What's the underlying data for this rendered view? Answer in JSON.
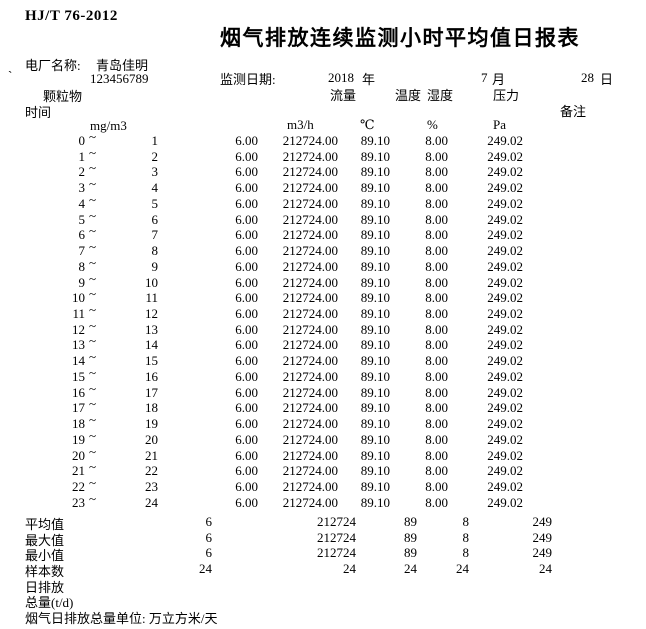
{
  "doc": {
    "standard": "HJ/T 76-2012",
    "title": "烟气排放连续监测小时平均值日报表",
    "plant_label": "电厂名称:",
    "plant_name": "青岛佳明",
    "plant_code_prefix": "`",
    "plant_code": "123456789",
    "date_label": "监测日期:",
    "date_year": "2018",
    "year_unit": "年",
    "date_month": "7",
    "month_unit": "月",
    "date_day": "28",
    "day_unit": "日"
  },
  "columns": {
    "time_label": "时间",
    "pm_label": "颗粒物",
    "pm_unit": "mg/m3",
    "flow_label": "流量",
    "flow_unit": "m3/h",
    "temp_label": "温度",
    "temp_unit": "℃",
    "humidity_label": "湿度",
    "humidity_unit": "%",
    "pressure_label": "压力",
    "pressure_unit": "Pa",
    "remark_label": "备注"
  },
  "table": {
    "tilde": "~",
    "rows": [
      {
        "from": "0",
        "to": "1",
        "pm": "6.00",
        "flow": "212724.00",
        "temp": "89.10",
        "humidity": "8.00",
        "pressure": "249.02"
      },
      {
        "from": "1",
        "to": "2",
        "pm": "6.00",
        "flow": "212724.00",
        "temp": "89.10",
        "humidity": "8.00",
        "pressure": "249.02"
      },
      {
        "from": "2",
        "to": "3",
        "pm": "6.00",
        "flow": "212724.00",
        "temp": "89.10",
        "humidity": "8.00",
        "pressure": "249.02"
      },
      {
        "from": "3",
        "to": "4",
        "pm": "6.00",
        "flow": "212724.00",
        "temp": "89.10",
        "humidity": "8.00",
        "pressure": "249.02"
      },
      {
        "from": "4",
        "to": "5",
        "pm": "6.00",
        "flow": "212724.00",
        "temp": "89.10",
        "humidity": "8.00",
        "pressure": "249.02"
      },
      {
        "from": "5",
        "to": "6",
        "pm": "6.00",
        "flow": "212724.00",
        "temp": "89.10",
        "humidity": "8.00",
        "pressure": "249.02"
      },
      {
        "from": "6",
        "to": "7",
        "pm": "6.00",
        "flow": "212724.00",
        "temp": "89.10",
        "humidity": "8.00",
        "pressure": "249.02"
      },
      {
        "from": "7",
        "to": "8",
        "pm": "6.00",
        "flow": "212724.00",
        "temp": "89.10",
        "humidity": "8.00",
        "pressure": "249.02"
      },
      {
        "from": "8",
        "to": "9",
        "pm": "6.00",
        "flow": "212724.00",
        "temp": "89.10",
        "humidity": "8.00",
        "pressure": "249.02"
      },
      {
        "from": "9",
        "to": "10",
        "pm": "6.00",
        "flow": "212724.00",
        "temp": "89.10",
        "humidity": "8.00",
        "pressure": "249.02"
      },
      {
        "from": "10",
        "to": "11",
        "pm": "6.00",
        "flow": "212724.00",
        "temp": "89.10",
        "humidity": "8.00",
        "pressure": "249.02"
      },
      {
        "from": "11",
        "to": "12",
        "pm": "6.00",
        "flow": "212724.00",
        "temp": "89.10",
        "humidity": "8.00",
        "pressure": "249.02"
      },
      {
        "from": "12",
        "to": "13",
        "pm": "6.00",
        "flow": "212724.00",
        "temp": "89.10",
        "humidity": "8.00",
        "pressure": "249.02"
      },
      {
        "from": "13",
        "to": "14",
        "pm": "6.00",
        "flow": "212724.00",
        "temp": "89.10",
        "humidity": "8.00",
        "pressure": "249.02"
      },
      {
        "from": "14",
        "to": "15",
        "pm": "6.00",
        "flow": "212724.00",
        "temp": "89.10",
        "humidity": "8.00",
        "pressure": "249.02"
      },
      {
        "from": "15",
        "to": "16",
        "pm": "6.00",
        "flow": "212724.00",
        "temp": "89.10",
        "humidity": "8.00",
        "pressure": "249.02"
      },
      {
        "from": "16",
        "to": "17",
        "pm": "6.00",
        "flow": "212724.00",
        "temp": "89.10",
        "humidity": "8.00",
        "pressure": "249.02"
      },
      {
        "from": "17",
        "to": "18",
        "pm": "6.00",
        "flow": "212724.00",
        "temp": "89.10",
        "humidity": "8.00",
        "pressure": "249.02"
      },
      {
        "from": "18",
        "to": "19",
        "pm": "6.00",
        "flow": "212724.00",
        "temp": "89.10",
        "humidity": "8.00",
        "pressure": "249.02"
      },
      {
        "from": "19",
        "to": "20",
        "pm": "6.00",
        "flow": "212724.00",
        "temp": "89.10",
        "humidity": "8.00",
        "pressure": "249.02"
      },
      {
        "from": "20",
        "to": "21",
        "pm": "6.00",
        "flow": "212724.00",
        "temp": "89.10",
        "humidity": "8.00",
        "pressure": "249.02"
      },
      {
        "from": "21",
        "to": "22",
        "pm": "6.00",
        "flow": "212724.00",
        "temp": "89.10",
        "humidity": "8.00",
        "pressure": "249.02"
      },
      {
        "from": "22",
        "to": "23",
        "pm": "6.00",
        "flow": "212724.00",
        "temp": "89.10",
        "humidity": "8.00",
        "pressure": "249.02"
      },
      {
        "from": "23",
        "to": "24",
        "pm": "6.00",
        "flow": "212724.00",
        "temp": "89.10",
        "humidity": "8.00",
        "pressure": "249.02"
      }
    ]
  },
  "summary": [
    {
      "label": "平均值",
      "pm": "6",
      "flow": "212724",
      "temp": "89",
      "humidity": "8",
      "pressure": "249"
    },
    {
      "label": "最大值",
      "pm": "6",
      "flow": "212724",
      "temp": "89",
      "humidity": "8",
      "pressure": "249"
    },
    {
      "label": "最小值",
      "pm": "6",
      "flow": "212724",
      "temp": "89",
      "humidity": "8",
      "pressure": "249"
    },
    {
      "label": "样本数",
      "pm": "24",
      "flow": "24",
      "temp": "24",
      "humidity": "24",
      "pressure": "24"
    }
  ],
  "footer": {
    "daily_emission_label": "日排放",
    "total_label": "总量(t/d)",
    "unit_note": "烟气日排放总量单位: 万立方米/天"
  }
}
